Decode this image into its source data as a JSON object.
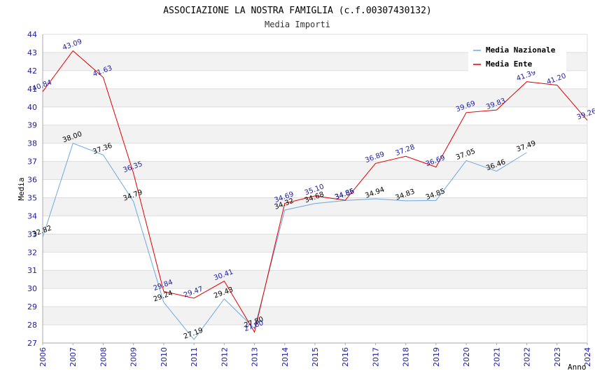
{
  "chart_data": {
    "type": "line",
    "title": "ASSOCIAZIONE LA NOSTRA FAMIGLIA (c.f.00307430132)",
    "subtitle": "Media Importi",
    "xlabel": "Anno",
    "ylabel": "Media",
    "ylim": [
      27,
      44
    ],
    "y_ticks": [
      27,
      28,
      29,
      30,
      31,
      32,
      33,
      34,
      35,
      36,
      37,
      38,
      39,
      40,
      41,
      42,
      43,
      44
    ],
    "x": [
      2006,
      2007,
      2008,
      2009,
      2010,
      2011,
      2012,
      2013,
      2014,
      2015,
      2016,
      2017,
      2018,
      2019,
      2020,
      2021,
      2022,
      2023,
      2024
    ],
    "series": [
      {
        "name": "Media Nazionale",
        "color": "#6fa8dc",
        "label_color": "#000000",
        "values": [
          32.82,
          38.0,
          37.36,
          34.79,
          29.24,
          27.19,
          29.43,
          27.8,
          34.32,
          34.68,
          34.85,
          34.94,
          34.83,
          34.85,
          37.05,
          36.46,
          37.49,
          null,
          null
        ],
        "labels": [
          "32.82",
          "38.00",
          "37.36",
          "34.79",
          "29.24",
          "27.19",
          "29.43",
          "27.80",
          "34.32",
          "34.68",
          "34.85",
          "34.94",
          "34.83",
          "34.85",
          "37.05",
          "36.46",
          "37.49",
          null,
          null
        ]
      },
      {
        "name": "Media Ente",
        "color": "#dd0000",
        "label_color": "#1a1aa8",
        "values": [
          40.84,
          43.09,
          41.63,
          36.35,
          29.84,
          29.47,
          30.41,
          27.6,
          34.69,
          35.1,
          34.86,
          36.89,
          37.28,
          36.69,
          39.69,
          39.83,
          41.39,
          41.2,
          39.26
        ],
        "labels": [
          "40.84",
          "43.09",
          "41.63",
          "36.35",
          "29.84",
          "29.47",
          "30.41",
          "27.60",
          "34.69",
          "35.10",
          "34.86",
          "36.89",
          "37.28",
          "36.69",
          "39.69",
          "39.83",
          "41.39",
          "41.20",
          "39.26"
        ]
      }
    ],
    "legend_position": "top-right",
    "grid": true
  }
}
